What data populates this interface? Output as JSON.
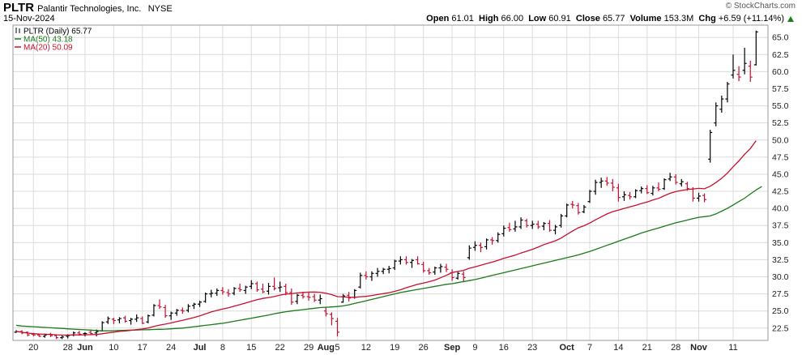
{
  "header": {
    "ticker": "PLTR",
    "company": "Palantir Technologies, Inc.",
    "exchange": "NYSE",
    "date": "15-Nov-2024",
    "copyright": "© StockCharts.com",
    "quote": {
      "open_label": "Open",
      "open": "61.01",
      "high_label": "High",
      "high": "66.00",
      "low_label": "Low",
      "low": "60.91",
      "close_label": "Close",
      "close": "65.77",
      "volume_label": "Volume",
      "volume": "153.3M",
      "chg_label": "Chg",
      "chg": "+6.59 (+11.14%)"
    }
  },
  "legend": [
    {
      "label": "PLTR (Daily) 65.77",
      "color": "#000000",
      "kind": "ohlc"
    },
    {
      "label": "MA(50) 43.18",
      "color": "#1a7a1a",
      "kind": "line"
    },
    {
      "label": "MA(20) 50.09",
      "color": "#c8102e",
      "kind": "line"
    }
  ],
  "colors": {
    "up": "#000000",
    "down": "#c8102e",
    "ma50": "#1a7a1a",
    "ma20": "#c8102e",
    "grid": "#dcdcdc"
  },
  "chart_data": {
    "type": "ohlc",
    "y_axis": {
      "ticks": [
        22.5,
        25.0,
        27.5,
        30.0,
        32.5,
        35.0,
        37.5,
        40.0,
        42.5,
        45.0,
        47.5,
        50.0,
        52.5,
        55.0,
        57.5,
        60.0,
        62.5,
        65.0
      ],
      "range": [
        20.7,
        66.8
      ],
      "position": "right"
    },
    "x_axis": {
      "labels": [
        {
          "label": "20",
          "i": 3,
          "bold": false
        },
        {
          "label": "28",
          "i": 9,
          "bold": false
        },
        {
          "label": "Jun",
          "i": 12,
          "bold": true
        },
        {
          "label": "10",
          "i": 17,
          "bold": false
        },
        {
          "label": "17",
          "i": 22,
          "bold": false
        },
        {
          "label": "24",
          "i": 27,
          "bold": false
        },
        {
          "label": "Jul",
          "i": 32,
          "bold": true
        },
        {
          "label": "8",
          "i": 36,
          "bold": false
        },
        {
          "label": "15",
          "i": 41,
          "bold": false
        },
        {
          "label": "22",
          "i": 46,
          "bold": false
        },
        {
          "label": "29",
          "i": 51,
          "bold": false
        },
        {
          "label": "Aug",
          "i": 54,
          "bold": true
        },
        {
          "label": "5",
          "i": 56,
          "bold": false
        },
        {
          "label": "12",
          "i": 61,
          "bold": false
        },
        {
          "label": "19",
          "i": 66,
          "bold": false
        },
        {
          "label": "26",
          "i": 71,
          "bold": false
        },
        {
          "label": "Sep",
          "i": 76,
          "bold": true
        },
        {
          "label": "9",
          "i": 80,
          "bold": false
        },
        {
          "label": "16",
          "i": 85,
          "bold": false
        },
        {
          "label": "23",
          "i": 90,
          "bold": false
        },
        {
          "label": "Oct",
          "i": 96,
          "bold": true
        },
        {
          "label": "7",
          "i": 100,
          "bold": false
        },
        {
          "label": "14",
          "i": 105,
          "bold": false
        },
        {
          "label": "21",
          "i": 110,
          "bold": false
        },
        {
          "label": "28",
          "i": 115,
          "bold": false
        },
        {
          "label": "Nov",
          "i": 119,
          "bold": true
        },
        {
          "label": "11",
          "i": 125,
          "bold": false
        }
      ],
      "vgrid": [
        3,
        9,
        12,
        17,
        22,
        27,
        32,
        36,
        41,
        46,
        51,
        54,
        56,
        61,
        66,
        71,
        76,
        80,
        85,
        90,
        96,
        100,
        105,
        110,
        115,
        119,
        125
      ]
    },
    "ohlc": [
      [
        21.9,
        22.2,
        21.8,
        22.0
      ],
      [
        22.0,
        22.2,
        21.6,
        21.8
      ],
      [
        21.9,
        22.0,
        21.3,
        21.5
      ],
      [
        21.6,
        21.8,
        21.3,
        21.5
      ],
      [
        21.5,
        21.7,
        21.2,
        21.3
      ],
      [
        21.3,
        21.7,
        21.1,
        21.5
      ],
      [
        21.6,
        21.8,
        21.2,
        21.4
      ],
      [
        21.4,
        21.6,
        20.9,
        21.1
      ],
      [
        21.1,
        21.4,
        20.9,
        21.2
      ],
      [
        21.3,
        21.6,
        21.0,
        21.4
      ],
      [
        21.5,
        22.0,
        21.3,
        21.8
      ],
      [
        21.8,
        22.1,
        21.4,
        21.6
      ],
      [
        21.7,
        21.9,
        21.3,
        21.7
      ],
      [
        21.9,
        22.3,
        21.5,
        21.7
      ],
      [
        21.8,
        22.3,
        21.3,
        22.0
      ],
      [
        22.1,
        23.5,
        22.0,
        23.3
      ],
      [
        23.4,
        24.2,
        23.1,
        23.9
      ],
      [
        23.8,
        24.0,
        23.1,
        23.6
      ],
      [
        23.7,
        24.1,
        23.2,
        23.9
      ],
      [
        24.0,
        24.3,
        23.3,
        23.5
      ],
      [
        23.6,
        24.0,
        23.0,
        23.8
      ],
      [
        23.8,
        24.5,
        23.4,
        24.0
      ],
      [
        23.9,
        24.2,
        23.1,
        23.2
      ],
      [
        23.4,
        24.5,
        23.2,
        24.3
      ],
      [
        24.4,
        26.0,
        24.2,
        25.8
      ],
      [
        25.8,
        26.7,
        25.3,
        25.6
      ],
      [
        25.5,
        25.9,
        24.0,
        24.3
      ],
      [
        24.3,
        24.9,
        23.7,
        24.7
      ],
      [
        24.7,
        25.3,
        24.3,
        25.1
      ],
      [
        25.1,
        25.5,
        24.6,
        25.0
      ],
      [
        25.1,
        26.0,
        24.8,
        25.7
      ],
      [
        25.8,
        26.2,
        25.3,
        26.0
      ],
      [
        26.0,
        26.5,
        25.6,
        26.3
      ],
      [
        26.4,
        27.7,
        26.2,
        27.5
      ],
      [
        27.5,
        28.1,
        27.0,
        27.6
      ],
      [
        27.6,
        28.3,
        27.2,
        28.0
      ],
      [
        28.0,
        28.5,
        27.4,
        27.8
      ],
      [
        27.7,
        28.2,
        27.1,
        27.5
      ],
      [
        27.6,
        28.5,
        27.3,
        28.3
      ],
      [
        28.3,
        29.0,
        27.8,
        28.1
      ],
      [
        28.0,
        28.7,
        27.5,
        28.5
      ],
      [
        28.6,
        29.5,
        28.2,
        29.0
      ],
      [
        29.0,
        29.3,
        27.8,
        28.1
      ],
      [
        28.2,
        29.0,
        27.6,
        27.8
      ],
      [
        27.9,
        29.1,
        27.4,
        28.6
      ],
      [
        28.6,
        29.9,
        28.0,
        28.3
      ],
      [
        28.4,
        29.3,
        27.8,
        28.5
      ],
      [
        28.6,
        29.0,
        27.3,
        27.7
      ],
      [
        27.7,
        28.3,
        25.9,
        26.3
      ],
      [
        26.4,
        27.5,
        26.0,
        27.3
      ],
      [
        27.3,
        27.8,
        26.8,
        27.1
      ],
      [
        27.1,
        27.7,
        26.5,
        27.0
      ],
      [
        27.1,
        27.5,
        26.3,
        26.6
      ],
      [
        26.6,
        27.4,
        26.0,
        26.8
      ],
      [
        25.0,
        25.5,
        24.2,
        24.6
      ],
      [
        24.5,
        24.8,
        22.9,
        23.9
      ],
      [
        23.5,
        24.0,
        21.3,
        21.9
      ],
      [
        26.3,
        27.5,
        26.2,
        27.2
      ],
      [
        27.3,
        27.8,
        26.4,
        26.9
      ],
      [
        27.0,
        28.2,
        26.8,
        28.0
      ],
      [
        28.5,
        30.6,
        28.3,
        30.2
      ],
      [
        30.2,
        30.8,
        29.6,
        30.0
      ],
      [
        30.0,
        30.8,
        29.4,
        30.5
      ],
      [
        30.5,
        31.3,
        30.0,
        30.8
      ],
      [
        30.8,
        31.3,
        30.4,
        31.1
      ],
      [
        31.1,
        31.6,
        30.5,
        31.2
      ],
      [
        31.3,
        32.5,
        31.0,
        32.3
      ],
      [
        32.3,
        33.0,
        31.8,
        32.5
      ],
      [
        32.5,
        33.0,
        31.8,
        32.1
      ],
      [
        32.1,
        32.6,
        31.3,
        32.4
      ],
      [
        32.5,
        33.0,
        31.8,
        31.9
      ],
      [
        31.8,
        32.2,
        30.6,
        30.9
      ],
      [
        30.9,
        31.3,
        30.3,
        30.6
      ],
      [
        30.7,
        31.5,
        30.3,
        31.3
      ],
      [
        31.3,
        31.9,
        30.6,
        31.5
      ],
      [
        31.4,
        31.9,
        30.7,
        31.1
      ],
      [
        30.6,
        31.1,
        29.4,
        29.9
      ],
      [
        29.8,
        30.7,
        29.6,
        30.5
      ],
      [
        30.4,
        30.8,
        29.2,
        29.9
      ],
      [
        32.8,
        34.6,
        32.5,
        34.2
      ],
      [
        34.3,
        35.2,
        33.8,
        34.6
      ],
      [
        34.6,
        35.0,
        33.6,
        34.3
      ],
      [
        34.4,
        35.6,
        34.0,
        35.4
      ],
      [
        35.4,
        35.8,
        34.7,
        35.3
      ],
      [
        35.3,
        36.5,
        35.0,
        36.2
      ],
      [
        36.3,
        37.5,
        35.9,
        37.1
      ],
      [
        37.2,
        37.9,
        36.6,
        36.9
      ],
      [
        37.0,
        38.2,
        36.6,
        37.3
      ],
      [
        37.3,
        38.7,
        37.0,
        38.3
      ],
      [
        38.2,
        38.5,
        37.2,
        37.5
      ],
      [
        37.5,
        38.2,
        37.0,
        37.7
      ],
      [
        37.7,
        38.2,
        37.0,
        37.3
      ],
      [
        37.4,
        38.0,
        36.8,
        37.8
      ],
      [
        37.8,
        38.3,
        36.6,
        36.8
      ],
      [
        36.8,
        37.6,
        36.2,
        37.3
      ],
      [
        37.5,
        39.2,
        37.2,
        38.9
      ],
      [
        38.9,
        40.7,
        38.7,
        40.5
      ],
      [
        40.6,
        41.1,
        40.0,
        40.5
      ],
      [
        40.4,
        40.8,
        39.1,
        39.4
      ],
      [
        39.5,
        40.5,
        39.3,
        40.2
      ],
      [
        41.0,
        42.7,
        40.8,
        42.5
      ],
      [
        42.5,
        44.2,
        42.0,
        43.8
      ],
      [
        43.8,
        44.5,
        43.0,
        44.0
      ],
      [
        44.0,
        44.6,
        43.3,
        43.7
      ],
      [
        43.7,
        44.3,
        42.5,
        43.1
      ],
      [
        43.0,
        43.6,
        41.0,
        41.6
      ],
      [
        41.7,
        42.5,
        41.1,
        42.0
      ],
      [
        41.9,
        42.4,
        41.3,
        41.7
      ],
      [
        41.7,
        42.8,
        41.5,
        42.6
      ],
      [
        42.6,
        43.2,
        42.2,
        42.9
      ],
      [
        42.9,
        43.4,
        42.1,
        42.3
      ],
      [
        42.2,
        43.3,
        41.9,
        43.0
      ],
      [
        43.0,
        43.8,
        42.5,
        42.8
      ],
      [
        42.9,
        44.4,
        42.7,
        44.2
      ],
      [
        44.3,
        45.2,
        44.0,
        44.6
      ],
      [
        44.6,
        45.0,
        43.5,
        43.8
      ],
      [
        43.6,
        44.3,
        43.2,
        43.9
      ],
      [
        43.6,
        43.9,
        42.6,
        42.9
      ],
      [
        42.8,
        43.1,
        41.0,
        41.5
      ],
      [
        41.5,
        42.3,
        41.0,
        41.8
      ],
      [
        41.9,
        42.2,
        40.9,
        41.3
      ],
      [
        47.2,
        51.5,
        46.7,
        51.1
      ],
      [
        52.5,
        55.5,
        52.0,
        55.0
      ],
      [
        54.5,
        56.5,
        54.0,
        56.0
      ],
      [
        56.0,
        58.5,
        55.5,
        58.2
      ],
      [
        59.5,
        62.5,
        59.0,
        60.2
      ],
      [
        59.6,
        60.8,
        58.6,
        59.2
      ],
      [
        60.2,
        63.5,
        59.6,
        61.2
      ],
      [
        60.8,
        61.6,
        58.5,
        59.2
      ],
      [
        61.0,
        66.0,
        60.9,
        65.8
      ]
    ],
    "ma50": [
      22.9,
      22.8,
      22.75,
      22.7,
      22.65,
      22.6,
      22.55,
      22.5,
      22.45,
      22.4,
      22.35,
      22.3,
      22.25,
      22.2,
      22.15,
      22.1,
      22.1,
      22.12,
      22.15,
      22.18,
      22.2,
      22.22,
      22.25,
      22.27,
      22.3,
      22.32,
      22.35,
      22.4,
      22.45,
      22.5,
      22.6,
      22.7,
      22.8,
      22.9,
      23.0,
      23.1,
      23.2,
      23.35,
      23.5,
      23.65,
      23.8,
      23.95,
      24.1,
      24.25,
      24.4,
      24.6,
      24.75,
      24.9,
      25.0,
      25.1,
      25.2,
      25.3,
      25.4,
      25.5,
      25.55,
      25.6,
      25.65,
      25.75,
      25.9,
      26.1,
      26.3,
      26.5,
      26.7,
      26.9,
      27.1,
      27.3,
      27.5,
      27.7,
      27.85,
      28.0,
      28.15,
      28.3,
      28.45,
      28.6,
      28.75,
      28.9,
      29.0,
      29.15,
      29.3,
      29.45,
      29.6,
      29.8,
      30.0,
      30.2,
      30.4,
      30.6,
      30.8,
      31.0,
      31.2,
      31.4,
      31.6,
      31.8,
      32.0,
      32.2,
      32.4,
      32.6,
      32.8,
      33.0,
      33.2,
      33.45,
      33.7,
      34.0,
      34.3,
      34.6,
      34.9,
      35.2,
      35.5,
      35.8,
      36.1,
      36.4,
      36.65,
      36.9,
      37.15,
      37.4,
      37.65,
      37.9,
      38.1,
      38.3,
      38.5,
      38.7,
      38.8,
      38.9,
      39.2,
      39.6,
      40.0,
      40.5,
      41.0,
      41.5,
      42.1,
      42.7,
      43.2
    ]
  }
}
